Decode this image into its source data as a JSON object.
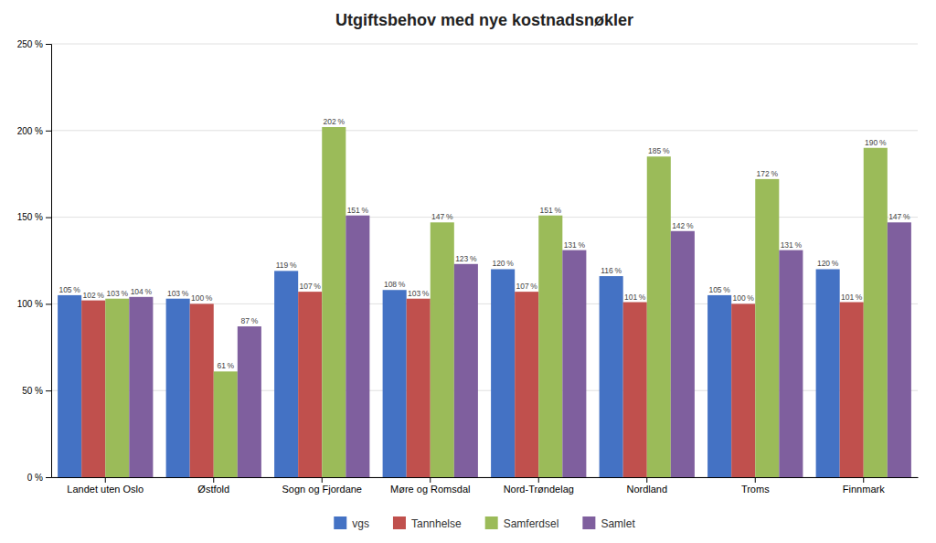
{
  "chart_data": {
    "type": "bar",
    "title": "Utgiftsbehov med nye kostnadsnøkler",
    "categories": [
      "Landet uten Oslo",
      "Østfold",
      "Sogn og Fjordane",
      "Møre og Romsdal",
      "Nord-Trøndelag",
      "Nordland",
      "Troms",
      "Finnmark"
    ],
    "series": [
      {
        "name": "vgs",
        "color": "#4472c4",
        "values": [
          105,
          103,
          119,
          108,
          120,
          116,
          105,
          120
        ],
        "value_labels": [
          "105 %",
          "103 %",
          "119 %",
          "108 %",
          "120 %",
          "116 %",
          "105 %",
          "120 %"
        ]
      },
      {
        "name": "Tannhelse",
        "color": "#c0504d",
        "values": [
          102,
          100,
          107,
          103,
          107,
          101,
          100,
          101
        ],
        "value_labels": [
          "102 %",
          "100 %",
          "107 %",
          "103 %",
          "107 %",
          "101 %",
          "100 %",
          "101 %"
        ]
      },
      {
        "name": "Samferdsel",
        "color": "#9bbb59",
        "values": [
          103,
          61,
          202,
          147,
          151,
          185,
          172,
          190
        ],
        "value_labels": [
          "103 %",
          "61 %",
          "202 %",
          "147 %",
          "151 %",
          "185 %",
          "172 %",
          "190 %"
        ]
      },
      {
        "name": "Samlet",
        "color": "#7f5f9e",
        "values": [
          104,
          87,
          151,
          123,
          131,
          142,
          131,
          147
        ],
        "value_labels": [
          "104 %",
          "87 %",
          "151 %",
          "123 %",
          "131 %",
          "142 %",
          "131 %",
          "147 %"
        ]
      }
    ],
    "ylim": [
      0,
      250
    ],
    "yticks": [
      {
        "value": 0,
        "label": "0 %"
      },
      {
        "value": 50,
        "label": "50 %"
      },
      {
        "value": 100,
        "label": "100 %"
      },
      {
        "value": 150,
        "label": "150 %"
      },
      {
        "value": 200,
        "label": "200 %"
      },
      {
        "value": 250,
        "label": "250 %"
      }
    ],
    "grid": true,
    "legend": "bottom",
    "data_labels": true
  }
}
